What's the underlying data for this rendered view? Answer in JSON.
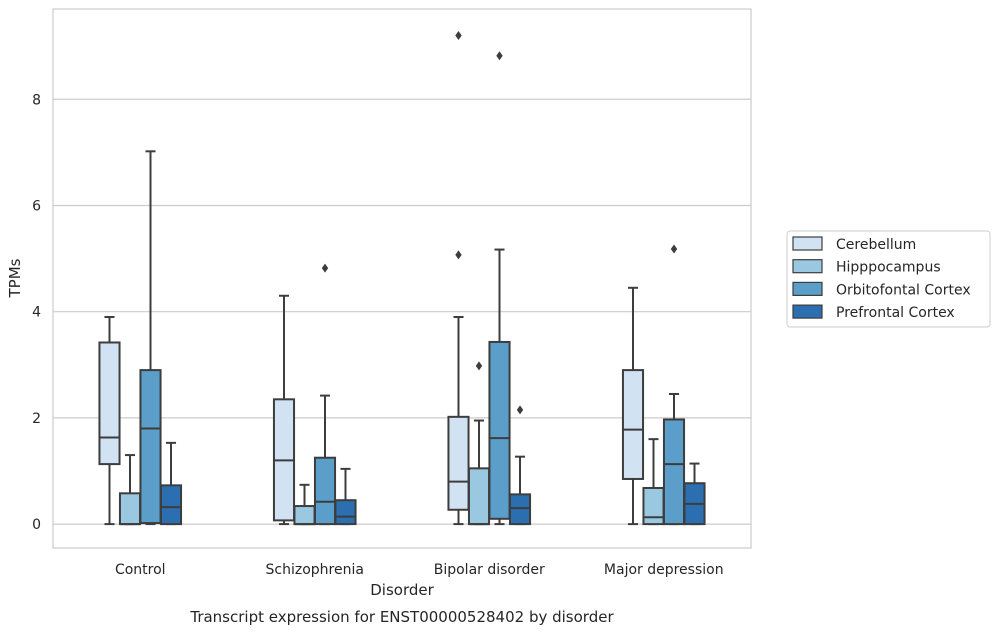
{
  "chart_data": {
    "type": "box",
    "title": "",
    "xlabel": "Disorder",
    "ylabel": "TPMs",
    "caption": "Transcript expression for ENST00000528402 by disorder",
    "ylim": [
      -0.45,
      9.7
    ],
    "yticks": [
      0,
      2,
      4,
      6,
      8
    ],
    "grid": "horizontal",
    "legend_position": "right",
    "categories": [
      "Control",
      "Schizophrenia",
      "Bipolar disorder",
      "Major depression"
    ],
    "series": [
      {
        "name": "Cerebellum",
        "color": "#d1e2f2",
        "boxes": [
          {
            "whislo": 0.0,
            "q1": 1.13,
            "med": 1.63,
            "q3": 3.42,
            "whishi": 3.9,
            "fliers": []
          },
          {
            "whislo": 0.0,
            "q1": 0.07,
            "med": 1.2,
            "q3": 2.35,
            "whishi": 4.3,
            "fliers": []
          },
          {
            "whislo": 0.0,
            "q1": 0.27,
            "med": 0.8,
            "q3": 2.02,
            "whishi": 3.9,
            "fliers": [
              5.07,
              9.2
            ]
          },
          {
            "whislo": 0.0,
            "q1": 0.85,
            "med": 1.78,
            "q3": 2.9,
            "whishi": 4.45,
            "fliers": []
          }
        ]
      },
      {
        "name": "Hipppocampus",
        "color": "#9ac8e0",
        "boxes": [
          {
            "whislo": 0.0,
            "q1": 0.0,
            "med": 0.0,
            "q3": 0.58,
            "whishi": 1.3,
            "fliers": []
          },
          {
            "whislo": 0.0,
            "q1": 0.0,
            "med": 0.0,
            "q3": 0.34,
            "whishi": 0.74,
            "fliers": []
          },
          {
            "whislo": 0.0,
            "q1": 0.0,
            "med": 0.0,
            "q3": 1.05,
            "whishi": 1.95,
            "fliers": [
              2.98
            ]
          },
          {
            "whislo": 0.0,
            "q1": 0.0,
            "med": 0.13,
            "q3": 0.68,
            "whishi": 1.6,
            "fliers": []
          }
        ]
      },
      {
        "name": "Orbitofontal Cortex",
        "color": "#5a9ec9",
        "boxes": [
          {
            "whislo": 0.0,
            "q1": 0.02,
            "med": 1.8,
            "q3": 2.9,
            "whishi": 7.02,
            "fliers": []
          },
          {
            "whislo": 0.0,
            "q1": 0.0,
            "med": 0.42,
            "q3": 1.25,
            "whishi": 2.42,
            "fliers": [
              4.82
            ]
          },
          {
            "whislo": 0.0,
            "q1": 0.1,
            "med": 1.62,
            "q3": 3.43,
            "whishi": 5.17,
            "fliers": [
              8.82
            ]
          },
          {
            "whislo": 0.0,
            "q1": 0.0,
            "med": 1.13,
            "q3": 1.97,
            "whishi": 2.45,
            "fliers": [
              5.18
            ]
          }
        ]
      },
      {
        "name": "Prefrontal Cortex",
        "color": "#2c6fb1",
        "boxes": [
          {
            "whislo": 0.0,
            "q1": 0.0,
            "med": 0.32,
            "q3": 0.73,
            "whishi": 1.53,
            "fliers": []
          },
          {
            "whislo": 0.0,
            "q1": 0.0,
            "med": 0.14,
            "q3": 0.45,
            "whishi": 1.04,
            "fliers": []
          },
          {
            "whislo": 0.0,
            "q1": 0.0,
            "med": 0.3,
            "q3": 0.56,
            "whishi": 1.27,
            "fliers": [
              2.15
            ]
          },
          {
            "whislo": 0.0,
            "q1": 0.0,
            "med": 0.38,
            "q3": 0.77,
            "whishi": 1.14,
            "fliers": []
          }
        ]
      }
    ]
  }
}
